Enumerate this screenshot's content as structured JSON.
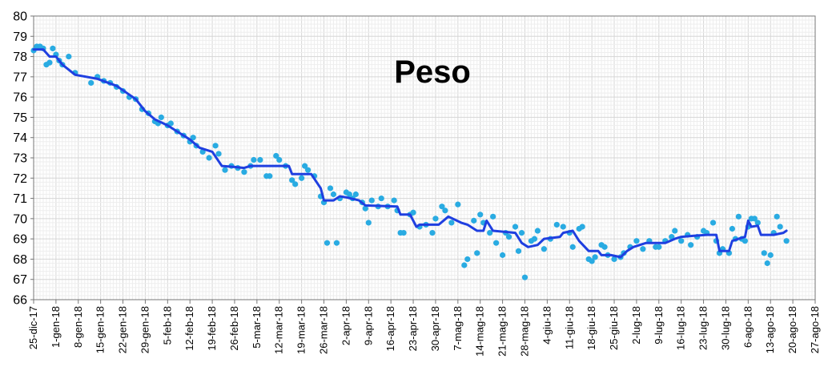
{
  "chart_data": {
    "type": "scatter",
    "title": "Peso",
    "xlabel": "",
    "ylabel": "",
    "ylim": [
      66,
      80
    ],
    "yticks": [
      66,
      67,
      68,
      69,
      70,
      71,
      72,
      73,
      74,
      75,
      76,
      77,
      78,
      79,
      80
    ],
    "xlim": [
      "2017-12-25",
      "2018-08-27"
    ],
    "xticks": [
      "2017-12-25",
      "2018-01-01",
      "2018-01-08",
      "2018-01-15",
      "2018-01-22",
      "2018-01-29",
      "2018-02-05",
      "2018-02-12",
      "2018-02-19",
      "2018-02-26",
      "2018-03-05",
      "2018-03-12",
      "2018-03-19",
      "2018-03-26",
      "2018-04-02",
      "2018-04-09",
      "2018-04-16",
      "2018-04-23",
      "2018-04-30",
      "2018-05-07",
      "2018-05-14",
      "2018-05-21",
      "2018-05-28",
      "2018-06-04",
      "2018-06-11",
      "2018-06-18",
      "2018-06-25",
      "2018-07-02",
      "2018-07-09",
      "2018-07-16",
      "2018-07-23",
      "2018-07-30",
      "2018-08-06",
      "2018-08-13",
      "2018-08-20",
      "2018-08-27"
    ],
    "xtick_labels": [
      "25-dic-17",
      "1-gen-18",
      "8-gen-18",
      "15-gen-18",
      "22-gen-18",
      "29-gen-18",
      "5-feb-18",
      "12-feb-18",
      "19-feb-18",
      "26-feb-18",
      "5-mar-18",
      "12-mar-18",
      "19-mar-18",
      "26-mar-18",
      "2-apr-18",
      "9-apr-18",
      "16-apr-18",
      "23-apr-18",
      "30-apr-18",
      "7-mag-18",
      "14-mag-18",
      "21-mag-18",
      "28-mag-18",
      "4-giu-18",
      "11-giu-18",
      "18-giu-18",
      "25-giu-18",
      "2-lug-18",
      "9-lug-18",
      "16-lug-18",
      "23-lug-18",
      "30-lug-18",
      "6-ago-18",
      "13-ago-18",
      "20-ago-18",
      "27-ago-18"
    ],
    "grid": true,
    "series": [
      {
        "type": "scatter",
        "color": "#29abe2",
        "points": [
          [
            "2017-12-25",
            78.3
          ],
          [
            "2017-12-26",
            78.5
          ],
          [
            "2017-12-27",
            78.5
          ],
          [
            "2017-12-28",
            78.4
          ],
          [
            "2017-12-29",
            77.6
          ],
          [
            "2017-12-30",
            77.7
          ],
          [
            "2017-12-31",
            78.4
          ],
          [
            "2018-01-01",
            78.1
          ],
          [
            "2018-01-02",
            77.8
          ],
          [
            "2018-01-03",
            77.6
          ],
          [
            "2018-01-05",
            78.0
          ],
          [
            "2018-01-07",
            77.2
          ],
          [
            "2018-01-12",
            76.7
          ],
          [
            "2018-01-14",
            77.0
          ],
          [
            "2018-01-16",
            76.8
          ],
          [
            "2018-01-18",
            76.7
          ],
          [
            "2018-01-20",
            76.5
          ],
          [
            "2018-01-22",
            76.3
          ],
          [
            "2018-01-24",
            76.0
          ],
          [
            "2018-01-26",
            75.9
          ],
          [
            "2018-01-28",
            75.4
          ],
          [
            "2018-01-30",
            75.2
          ],
          [
            "2018-02-01",
            74.8
          ],
          [
            "2018-02-02",
            74.7
          ],
          [
            "2018-02-03",
            75.0
          ],
          [
            "2018-02-05",
            74.6
          ],
          [
            "2018-02-06",
            74.7
          ],
          [
            "2018-02-08",
            74.3
          ],
          [
            "2018-02-10",
            74.1
          ],
          [
            "2018-02-12",
            73.8
          ],
          [
            "2018-02-13",
            74.0
          ],
          [
            "2018-02-14",
            73.6
          ],
          [
            "2018-02-16",
            73.3
          ],
          [
            "2018-02-18",
            73.0
          ],
          [
            "2018-02-20",
            73.6
          ],
          [
            "2018-02-21",
            73.2
          ],
          [
            "2018-02-23",
            72.4
          ],
          [
            "2018-02-25",
            72.6
          ],
          [
            "2018-02-27",
            72.5
          ],
          [
            "2018-03-01",
            72.3
          ],
          [
            "2018-03-03",
            72.6
          ],
          [
            "2018-03-04",
            72.9
          ],
          [
            "2018-03-06",
            72.9
          ],
          [
            "2018-03-08",
            72.1
          ],
          [
            "2018-03-09",
            72.1
          ],
          [
            "2018-03-11",
            73.1
          ],
          [
            "2018-03-12",
            72.9
          ],
          [
            "2018-03-14",
            72.6
          ],
          [
            "2018-03-16",
            71.9
          ],
          [
            "2018-03-17",
            71.7
          ],
          [
            "2018-03-19",
            72.0
          ],
          [
            "2018-03-20",
            72.6
          ],
          [
            "2018-03-21",
            72.4
          ],
          [
            "2018-03-23",
            72.1
          ],
          [
            "2018-03-25",
            71.1
          ],
          [
            "2018-03-26",
            70.8
          ],
          [
            "2018-03-27",
            68.8
          ],
          [
            "2018-03-28",
            71.5
          ],
          [
            "2018-03-29",
            71.2
          ],
          [
            "2018-03-30",
            68.8
          ],
          [
            "2018-03-31",
            71.0
          ],
          [
            "2018-04-02",
            71.3
          ],
          [
            "2018-04-03",
            71.2
          ],
          [
            "2018-04-04",
            71.0
          ],
          [
            "2018-04-05",
            71.2
          ],
          [
            "2018-04-07",
            70.8
          ],
          [
            "2018-04-08",
            70.5
          ],
          [
            "2018-04-09",
            69.8
          ],
          [
            "2018-04-10",
            70.9
          ],
          [
            "2018-04-12",
            70.6
          ],
          [
            "2018-04-13",
            71.0
          ],
          [
            "2018-04-15",
            70.6
          ],
          [
            "2018-04-17",
            70.9
          ],
          [
            "2018-04-18",
            70.4
          ],
          [
            "2018-04-19",
            69.3
          ],
          [
            "2018-04-20",
            69.3
          ],
          [
            "2018-04-22",
            70.2
          ],
          [
            "2018-04-23",
            70.3
          ],
          [
            "2018-04-25",
            69.6
          ],
          [
            "2018-04-27",
            69.7
          ],
          [
            "2018-04-29",
            69.3
          ],
          [
            "2018-04-30",
            70.0
          ],
          [
            "2018-05-02",
            70.6
          ],
          [
            "2018-05-03",
            70.4
          ],
          [
            "2018-05-05",
            69.8
          ],
          [
            "2018-05-07",
            70.7
          ],
          [
            "2018-05-09",
            67.7
          ],
          [
            "2018-05-10",
            68.0
          ],
          [
            "2018-05-12",
            69.9
          ],
          [
            "2018-05-13",
            68.3
          ],
          [
            "2018-05-14",
            70.2
          ],
          [
            "2018-05-15",
            69.8
          ],
          [
            "2018-05-17",
            69.3
          ],
          [
            "2018-05-18",
            70.1
          ],
          [
            "2018-05-19",
            68.8
          ],
          [
            "2018-05-21",
            68.2
          ],
          [
            "2018-05-22",
            69.3
          ],
          [
            "2018-05-23",
            69.1
          ],
          [
            "2018-05-25",
            69.6
          ],
          [
            "2018-05-26",
            68.4
          ],
          [
            "2018-05-27",
            69.3
          ],
          [
            "2018-05-28",
            67.1
          ],
          [
            "2018-05-30",
            68.9
          ],
          [
            "2018-05-31",
            69.0
          ],
          [
            "2018-06-01",
            69.4
          ],
          [
            "2018-06-03",
            68.5
          ],
          [
            "2018-06-05",
            69.0
          ],
          [
            "2018-06-07",
            69.7
          ],
          [
            "2018-06-09",
            69.6
          ],
          [
            "2018-06-11",
            69.3
          ],
          [
            "2018-06-12",
            68.6
          ],
          [
            "2018-06-14",
            69.5
          ],
          [
            "2018-06-15",
            69.6
          ],
          [
            "2018-06-17",
            68.0
          ],
          [
            "2018-06-18",
            67.9
          ],
          [
            "2018-06-19",
            68.1
          ],
          [
            "2018-06-21",
            68.7
          ],
          [
            "2018-06-22",
            68.6
          ],
          [
            "2018-06-23",
            68.2
          ],
          [
            "2018-06-25",
            68.0
          ],
          [
            "2018-06-27",
            68.1
          ],
          [
            "2018-06-28",
            68.3
          ],
          [
            "2018-06-30",
            68.6
          ],
          [
            "2018-07-02",
            68.9
          ],
          [
            "2018-07-04",
            68.5
          ],
          [
            "2018-07-06",
            68.9
          ],
          [
            "2018-07-08",
            68.6
          ],
          [
            "2018-07-09",
            68.6
          ],
          [
            "2018-07-11",
            68.9
          ],
          [
            "2018-07-13",
            69.1
          ],
          [
            "2018-07-14",
            69.4
          ],
          [
            "2018-07-16",
            68.9
          ],
          [
            "2018-07-18",
            69.2
          ],
          [
            "2018-07-19",
            68.7
          ],
          [
            "2018-07-21",
            69.1
          ],
          [
            "2018-07-23",
            69.4
          ],
          [
            "2018-07-24",
            69.3
          ],
          [
            "2018-07-26",
            69.8
          ],
          [
            "2018-07-27",
            68.9
          ],
          [
            "2018-07-28",
            68.3
          ],
          [
            "2018-07-29",
            68.5
          ],
          [
            "2018-07-31",
            68.3
          ],
          [
            "2018-08-01",
            69.5
          ],
          [
            "2018-08-02",
            69.0
          ],
          [
            "2018-08-03",
            70.1
          ],
          [
            "2018-08-04",
            69.0
          ],
          [
            "2018-08-05",
            68.9
          ],
          [
            "2018-08-06",
            69.6
          ],
          [
            "2018-08-07",
            70.0
          ],
          [
            "2018-08-08",
            70.0
          ],
          [
            "2018-08-09",
            69.8
          ],
          [
            "2018-08-11",
            68.3
          ],
          [
            "2018-08-12",
            67.8
          ],
          [
            "2018-08-13",
            68.2
          ],
          [
            "2018-08-14",
            69.3
          ],
          [
            "2018-08-15",
            70.1
          ],
          [
            "2018-08-16",
            69.6
          ],
          [
            "2018-08-18",
            68.9
          ]
        ]
      },
      {
        "type": "line",
        "color": "#1f3fe0",
        "points": [
          [
            "2017-12-25",
            78.35
          ],
          [
            "2017-12-28",
            78.35
          ],
          [
            "2017-12-30",
            78.0
          ],
          [
            "2018-01-01",
            78.0
          ],
          [
            "2018-01-03",
            77.6
          ],
          [
            "2018-01-07",
            77.1
          ],
          [
            "2018-01-14",
            76.9
          ],
          [
            "2018-01-20",
            76.55
          ],
          [
            "2018-01-26",
            75.9
          ],
          [
            "2018-01-29",
            75.3
          ],
          [
            "2018-02-01",
            74.9
          ],
          [
            "2018-02-05",
            74.6
          ],
          [
            "2018-02-08",
            74.3
          ],
          [
            "2018-02-12",
            73.9
          ],
          [
            "2018-02-15",
            73.5
          ],
          [
            "2018-02-19",
            73.3
          ],
          [
            "2018-02-22",
            72.6
          ],
          [
            "2018-02-26",
            72.55
          ],
          [
            "2018-03-01",
            72.5
          ],
          [
            "2018-03-03",
            72.6
          ],
          [
            "2018-03-15",
            72.6
          ],
          [
            "2018-03-16",
            72.2
          ],
          [
            "2018-03-22",
            72.2
          ],
          [
            "2018-03-25",
            71.5
          ],
          [
            "2018-03-26",
            70.9
          ],
          [
            "2018-03-29",
            70.9
          ],
          [
            "2018-03-31",
            71.1
          ],
          [
            "2018-04-02",
            71.05
          ],
          [
            "2018-04-06",
            70.9
          ],
          [
            "2018-04-08",
            70.65
          ],
          [
            "2018-04-18",
            70.6
          ],
          [
            "2018-04-19",
            70.2
          ],
          [
            "2018-04-22",
            70.2
          ],
          [
            "2018-04-24",
            69.6
          ],
          [
            "2018-04-25",
            69.7
          ],
          [
            "2018-05-01",
            69.7
          ],
          [
            "2018-05-04",
            70.1
          ],
          [
            "2018-05-08",
            69.8
          ],
          [
            "2018-05-10",
            69.7
          ],
          [
            "2018-05-13",
            69.4
          ],
          [
            "2018-05-15",
            69.4
          ],
          [
            "2018-05-16",
            69.9
          ],
          [
            "2018-05-18",
            69.4
          ],
          [
            "2018-05-25",
            69.3
          ],
          [
            "2018-05-27",
            68.8
          ],
          [
            "2018-05-29",
            68.6
          ],
          [
            "2018-06-01",
            68.7
          ],
          [
            "2018-06-03",
            69.0
          ],
          [
            "2018-06-08",
            69.1
          ],
          [
            "2018-06-09",
            69.3
          ],
          [
            "2018-06-12",
            69.4
          ],
          [
            "2018-06-14",
            68.9
          ],
          [
            "2018-06-17",
            68.4
          ],
          [
            "2018-06-20",
            68.4
          ],
          [
            "2018-06-21",
            68.2
          ],
          [
            "2018-06-24",
            68.2
          ],
          [
            "2018-06-27",
            68.1
          ],
          [
            "2018-06-29",
            68.4
          ],
          [
            "2018-07-01",
            68.6
          ],
          [
            "2018-07-05",
            68.8
          ],
          [
            "2018-07-08",
            68.8
          ],
          [
            "2018-07-11",
            68.8
          ],
          [
            "2018-07-14",
            69.0
          ],
          [
            "2018-07-16",
            69.1
          ],
          [
            "2018-07-20",
            69.15
          ],
          [
            "2018-07-24",
            69.2
          ],
          [
            "2018-07-27",
            69.2
          ],
          [
            "2018-07-28",
            68.4
          ],
          [
            "2018-07-31",
            68.4
          ],
          [
            "2018-08-01",
            68.9
          ],
          [
            "2018-08-03",
            69.0
          ],
          [
            "2018-08-05",
            69.1
          ],
          [
            "2018-08-06",
            69.9
          ],
          [
            "2018-08-07",
            69.6
          ],
          [
            "2018-08-09",
            69.65
          ],
          [
            "2018-08-10",
            69.2
          ],
          [
            "2018-08-14",
            69.2
          ],
          [
            "2018-08-17",
            69.3
          ],
          [
            "2018-08-18",
            69.4
          ]
        ]
      }
    ]
  }
}
